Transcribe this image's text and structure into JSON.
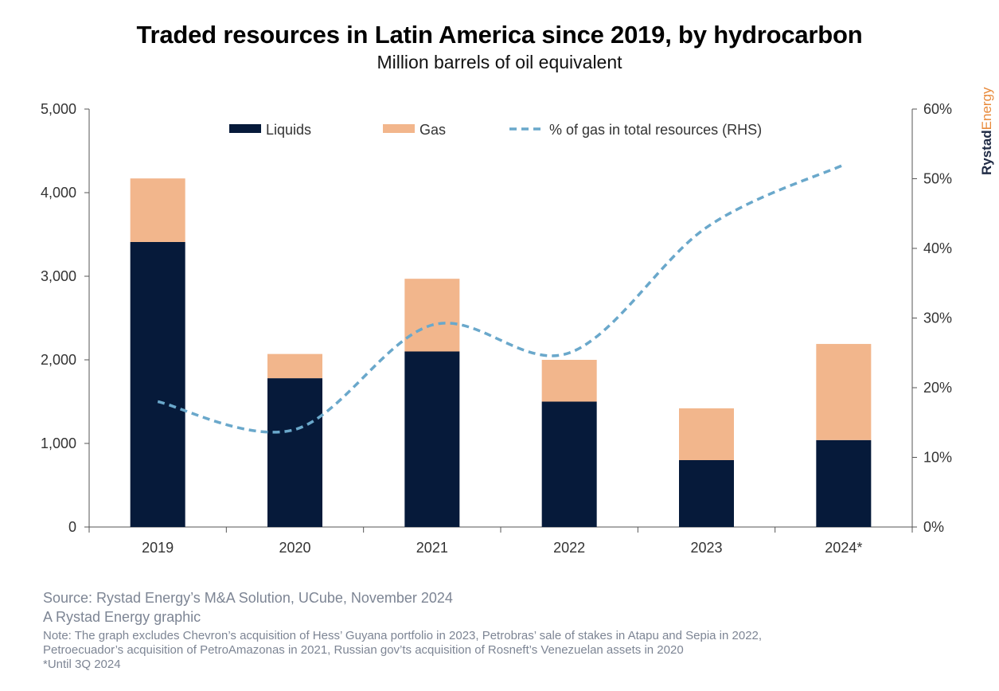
{
  "title": "Traded resources in Latin America since 2019, by hydrocarbon",
  "subtitle": "Million barrels of oil equivalent",
  "brand": {
    "part1": "Rystad",
    "part2": "Energy"
  },
  "footer": {
    "source": "Source: Rystad Energy’s M&A Solution, UCube, November 2024",
    "graphic": "A Rystad Energy graphic",
    "note_line1": "Note: The graph excludes Chevron’s acquisition of Hess’ Guyana portfolio in 2023, Petrobras’ sale of stakes in Atapu and Sepia in 2022,",
    "note_line2": "Petroecuador’s acquisition of PetroAmazonas in 2021, Russian gov’ts acquisition of Rosneft’s Venezuelan assets in 2020",
    "note_line3": "*Until 3Q 2024"
  },
  "colors": {
    "liquids": "#061a3a",
    "gas": "#f2b68c",
    "line": "#6aa8cb",
    "axis": "#555555",
    "brand_dark": "#1f2a44",
    "brand_accent": "#e8893a"
  },
  "chart_data": {
    "type": "bar",
    "stacked": true,
    "categories": [
      "2019",
      "2020",
      "2021",
      "2022",
      "2023",
      "2024*"
    ],
    "series": [
      {
        "name": "Liquids",
        "axis": "left",
        "values": [
          3410,
          1780,
          2100,
          1500,
          800,
          1040
        ]
      },
      {
        "name": "Gas",
        "axis": "left",
        "values": [
          760,
          290,
          870,
          500,
          620,
          1150
        ]
      },
      {
        "name": "% of gas in total resources (RHS)",
        "type": "line",
        "style": "dashed",
        "axis": "right",
        "values": [
          18,
          14,
          29,
          25,
          43,
          52
        ]
      }
    ],
    "ylim": [
      0,
      5000
    ],
    "yticks": [
      "0",
      "1,000",
      "2,000",
      "3,000",
      "4,000",
      "5,000"
    ],
    "y2lim": [
      0,
      60
    ],
    "y2ticks": [
      "0%",
      "10%",
      "20%",
      "30%",
      "40%",
      "50%",
      "60%"
    ],
    "legend_position": "top",
    "grid": false
  }
}
